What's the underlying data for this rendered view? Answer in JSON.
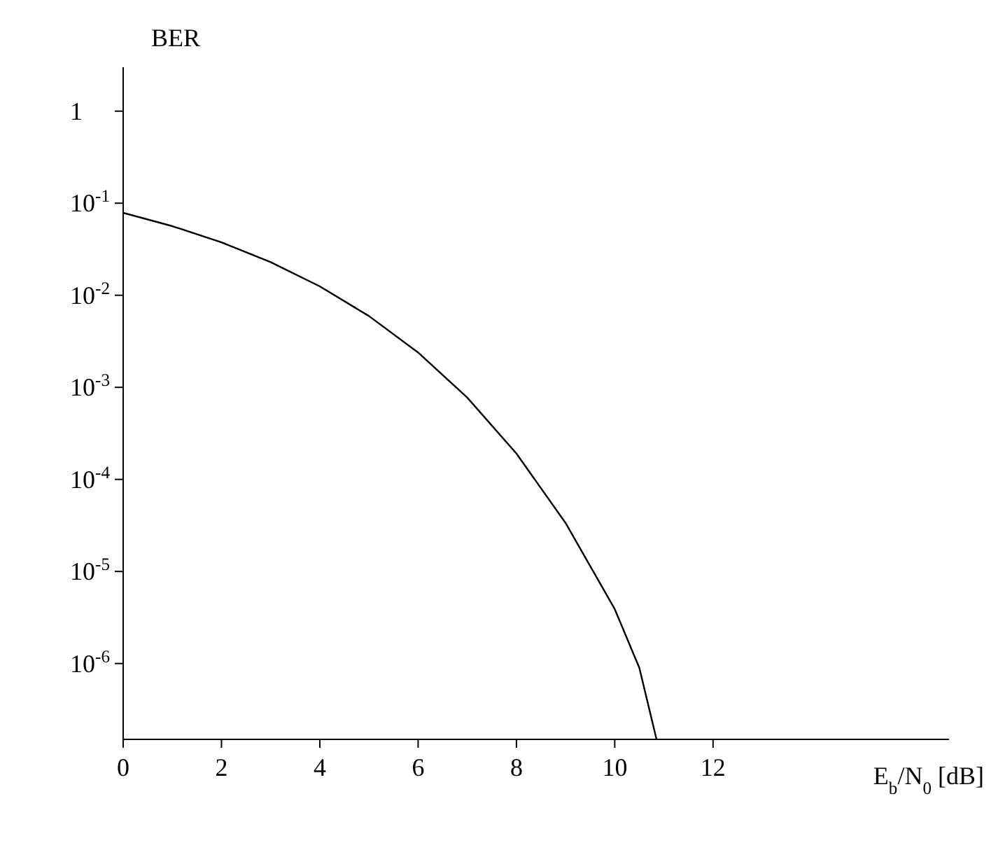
{
  "chart_data": {
    "type": "line",
    "ylabel": "BER",
    "xlabel": "E$_{b}$/N$_{0}$ [dB]",
    "x": [
      0,
      1,
      2,
      3,
      4,
      5,
      6,
      7,
      8,
      9,
      10,
      10.5,
      10.85
    ],
    "series": [
      {
        "color": "#000000",
        "values": [
          0.0786,
          0.0563,
          0.0375,
          0.0229,
          0.0125,
          0.00595,
          0.00239,
          0.000773,
          0.000191,
          3.36e-05,
          3.9e-06,
          9e-07,
          1.5e-07
        ]
      }
    ],
    "log": "y",
    "xlim": [
      0,
      16.8
    ],
    "ylim": [
      1.5e-07,
      3
    ],
    "xticks": [
      0,
      2,
      4,
      6,
      8,
      10,
      12
    ],
    "yticks": [
      {
        "value": 1,
        "label": "1"
      },
      {
        "value": 0.1,
        "label": "10$^{-1}$"
      },
      {
        "value": 0.01,
        "label": "10$^{-2}$"
      },
      {
        "value": 0.001,
        "label": "10$^{-3}$"
      },
      {
        "value": 0.0001,
        "label": "10$^{-4}$"
      },
      {
        "value": 1e-05,
        "label": "10$^{-5}$"
      },
      {
        "value": 1e-06,
        "label": "10$^{-6}$"
      }
    ],
    "grid": false,
    "legend": false,
    "marker": "none",
    "line_style": "solid"
  }
}
